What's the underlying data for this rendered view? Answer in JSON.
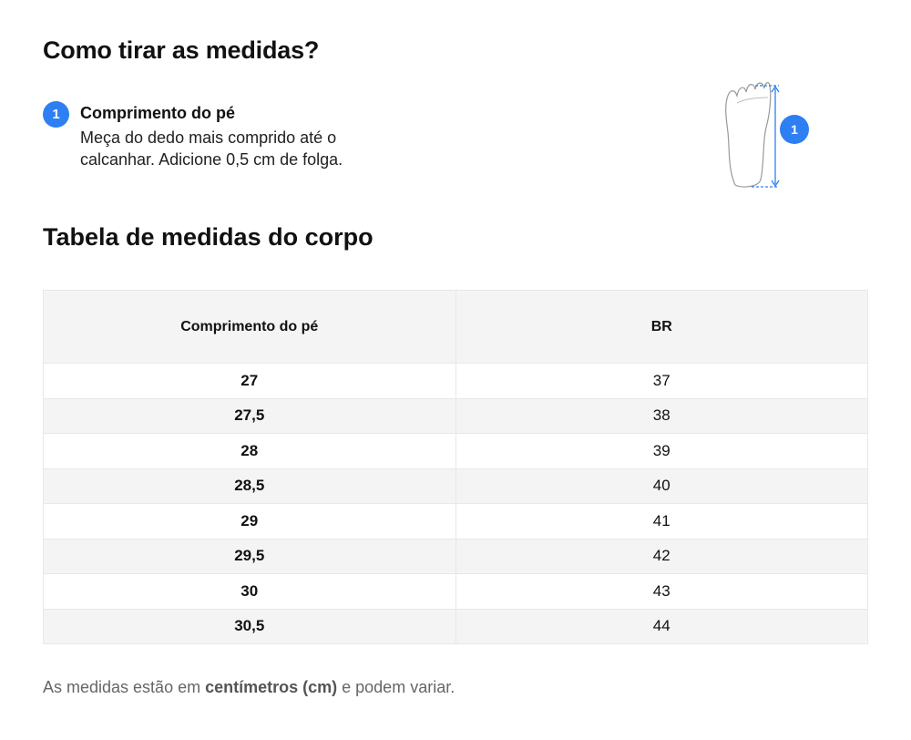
{
  "title": "Como tirar as medidas?",
  "step": {
    "number": "1",
    "title": "Comprimento do pé",
    "description": "Meça do dedo mais comprido até o calcanhar. Adicione 0,5 cm de folga."
  },
  "illustration": {
    "badge": "1",
    "accent": "#2d7ff3"
  },
  "table_title": "Tabela de medidas do corpo",
  "table": {
    "headers": [
      "Comprimento do pé",
      "BR"
    ],
    "rows": [
      [
        "27",
        "37"
      ],
      [
        "27,5",
        "38"
      ],
      [
        "28",
        "39"
      ],
      [
        "28,5",
        "40"
      ],
      [
        "29",
        "41"
      ],
      [
        "29,5",
        "42"
      ],
      [
        "30",
        "43"
      ],
      [
        "30,5",
        "44"
      ]
    ]
  },
  "note": {
    "pre": "As medidas estão em ",
    "bold": "centímetros (cm)",
    "post": " e podem variar."
  }
}
